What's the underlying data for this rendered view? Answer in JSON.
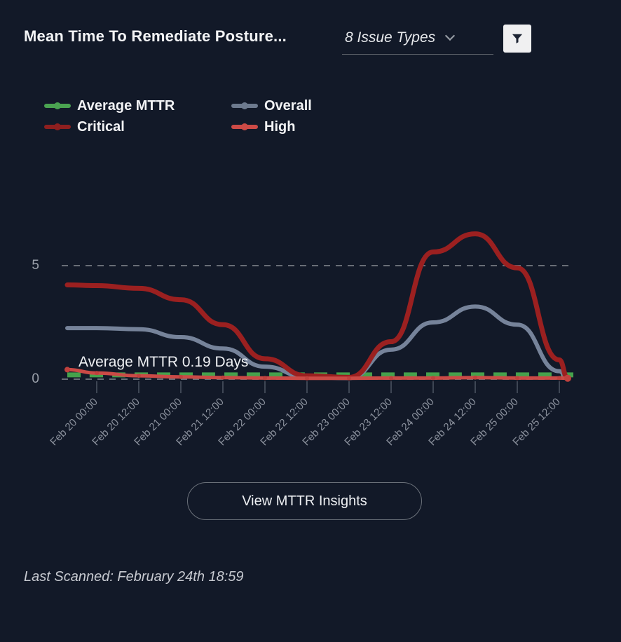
{
  "header": {
    "title": "Mean Time To Remediate Posture...",
    "dropdown_value": "8 Issue Types",
    "chevron_icon": "chevron-down",
    "filter_icon": "funnel"
  },
  "legend": {
    "items": [
      {
        "label": "Average MTTR",
        "color": "#4aa351"
      },
      {
        "label": "Overall",
        "color": "#6d7a8e"
      },
      {
        "label": "Critical",
        "color": "#8e1f1f"
      },
      {
        "label": "High",
        "color": "#cc4a46"
      }
    ]
  },
  "y_axis": {
    "labels": [
      "5",
      "0"
    ]
  },
  "chart_data": {
    "type": "line",
    "title": "Mean Time To Remediate Posture (Days)",
    "categories": [
      "Feb 20 00:00",
      "Feb 20 12:00",
      "Feb 21 00:00",
      "Feb 21 12:00",
      "Feb 22 00:00",
      "Feb 22 12:00",
      "Feb 23 00:00",
      "Feb 23 12:00",
      "Feb 24 00:00",
      "Feb 24 12:00",
      "Feb 25 00:00",
      "Feb 25 12:00"
    ],
    "ylim": [
      0,
      6.8
    ],
    "yticks": [
      0,
      5
    ],
    "grid": "dashed-horizontal",
    "legend_position": "top-left",
    "annotation": "Average MTTR 0.19 Days",
    "average_mttr_days": 0.19,
    "series": [
      {
        "name": "Average MTTR",
        "color": "#45a14c",
        "style": "dashed",
        "width": 7,
        "lead": 0.19,
        "values": [
          0.19,
          0.19,
          0.19,
          0.19,
          0.19,
          0.19,
          0.19,
          0.19,
          0.19,
          0.19,
          0.19,
          0.19
        ],
        "tail": 0.19
      },
      {
        "name": "Overall",
        "color": "#76839a",
        "style": "solid",
        "width": 6,
        "lead": 2.25,
        "values": [
          2.25,
          2.2,
          1.85,
          1.35,
          0.55,
          0.08,
          0.05,
          1.3,
          2.5,
          3.2,
          2.4,
          0.35
        ],
        "tail": 0.03
      },
      {
        "name": "Critical",
        "color": "#9b2020",
        "style": "solid",
        "width": 7,
        "lead": 4.15,
        "values": [
          4.12,
          4.0,
          3.5,
          2.4,
          0.9,
          0.15,
          0.08,
          1.65,
          5.6,
          6.4,
          4.9,
          0.85
        ],
        "tail": 0.04
      },
      {
        "name": "High",
        "color": "#cb4a46",
        "style": "solid",
        "width": 5,
        "markers": true,
        "lead": 0.42,
        "values": [
          0.27,
          0.15,
          0.1,
          0.07,
          0.05,
          0.04,
          0.04,
          0.05,
          0.05,
          0.07,
          0.05,
          0.05
        ],
        "tail": 0.04
      }
    ]
  },
  "actions": {
    "view_insights_label": "View MTTR Insights"
  },
  "footer": {
    "last_scanned": "Last Scanned: February 24th 18:59"
  }
}
